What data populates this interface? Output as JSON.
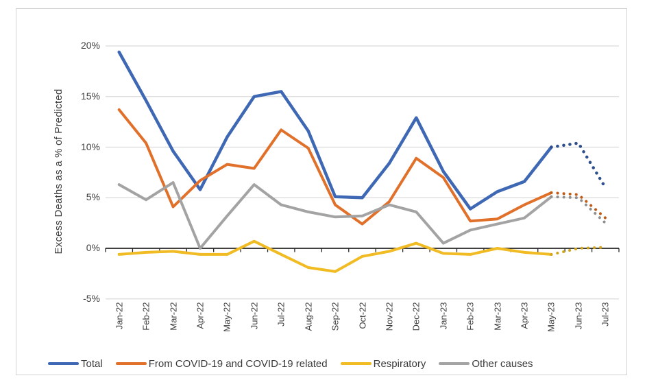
{
  "chart_data": {
    "type": "line",
    "title": "",
    "xlabel": "",
    "ylabel": "Excess Deaths as a % of Predicted",
    "ylim": [
      -5,
      20
    ],
    "grid": "horizontal",
    "legend_position": "bottom",
    "y_ticks": [
      {
        "value": 20,
        "label": "20%"
      },
      {
        "value": 15,
        "label": "15%"
      },
      {
        "value": 10,
        "label": "10%"
      },
      {
        "value": 5,
        "label": "5%"
      },
      {
        "value": 0,
        "label": "0%"
      },
      {
        "value": -5,
        "label": "-5%"
      }
    ],
    "categories": [
      "Jan-22",
      "Feb-22",
      "Mar-22",
      "Apr-22",
      "May-22",
      "Jun-22",
      "Jul-22",
      "Aug-22",
      "Sep-22",
      "Oct-22",
      "Nov-22",
      "Dec-22",
      "Jan-23",
      "Feb-23",
      "Mar-23",
      "Apr-23",
      "May-23",
      "Jun-23",
      "Jul-23"
    ],
    "dotted_from_index": 16,
    "dotted_note": "values after May-23 are shown as dotted projections",
    "series": [
      {
        "name": "Total",
        "color": "#3E68B4",
        "dot_color": "#2D4E8C",
        "values": [
          19.4,
          14.6,
          9.6,
          5.8,
          11.0,
          15.0,
          15.5,
          11.6,
          5.1,
          5.0,
          8.4,
          12.9,
          7.6,
          3.9,
          5.6,
          6.6,
          10.0,
          10.4,
          6.0
        ]
      },
      {
        "name": "From COVID-19 and COVID-19 related",
        "color": "#E0702A",
        "dot_color": "#C05A17",
        "values": [
          13.7,
          10.4,
          4.1,
          6.7,
          8.3,
          7.9,
          11.7,
          9.9,
          4.3,
          2.4,
          4.6,
          8.9,
          7.0,
          2.7,
          2.9,
          4.3,
          5.5,
          5.3,
          3.0
        ]
      },
      {
        "name": "Respiratory",
        "color": "#F1BB23",
        "dot_color": "#D2A51B",
        "values": [
          -0.6,
          -0.4,
          -0.3,
          -0.6,
          -0.6,
          0.7,
          -0.6,
          -1.9,
          -2.3,
          -0.8,
          -0.3,
          0.5,
          -0.5,
          -0.6,
          0.0,
          -0.4,
          -0.6,
          0.0,
          0.1
        ]
      },
      {
        "name": "Other causes",
        "color": "#A3A3A3",
        "dot_color": "#8F8F8F",
        "values": [
          6.3,
          4.8,
          6.5,
          0.0,
          3.2,
          6.3,
          4.3,
          3.6,
          3.1,
          3.2,
          4.3,
          3.6,
          0.5,
          1.8,
          2.4,
          3.0,
          5.1,
          5.0,
          2.5
        ]
      }
    ],
    "colors": {
      "axis": "#262626",
      "gridline": "#DADADA",
      "tick_text": "#3F3F3F",
      "frame_border": "#D2D2D2",
      "background": "#FFFFFF"
    }
  }
}
